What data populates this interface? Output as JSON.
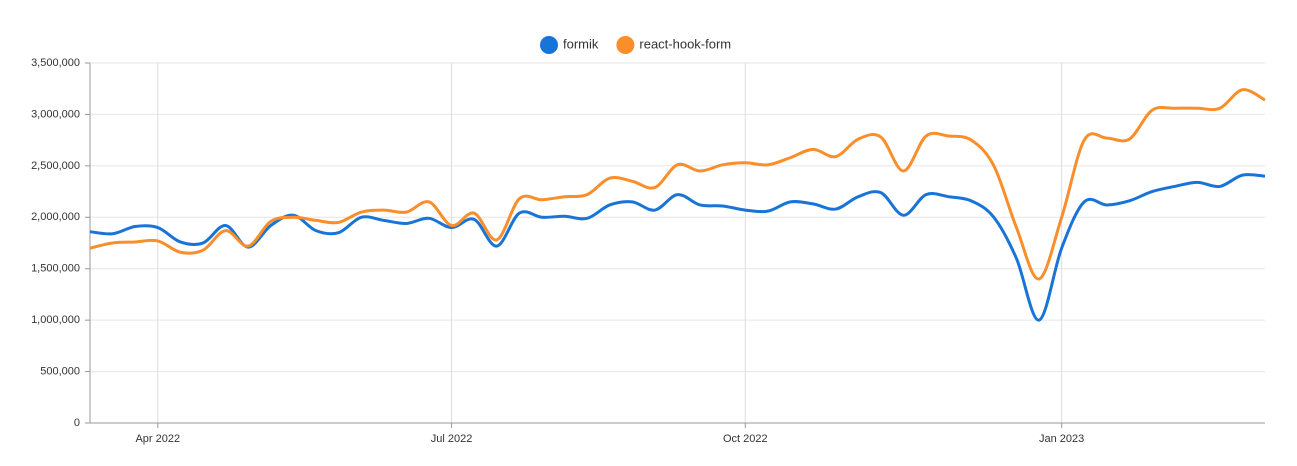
{
  "chart_data": {
    "type": "line",
    "categories": [
      null,
      null,
      null,
      "Apr 2022",
      null,
      null,
      null,
      null,
      null,
      null,
      null,
      null,
      null,
      null,
      null,
      null,
      "Jul 2022",
      null,
      null,
      null,
      null,
      null,
      null,
      null,
      null,
      null,
      null,
      null,
      null,
      "Oct 2022",
      null,
      null,
      null,
      null,
      null,
      null,
      null,
      null,
      null,
      null,
      null,
      null,
      null,
      "Jan 2023",
      null,
      null,
      null,
      null,
      null,
      null,
      null,
      null,
      null
    ],
    "series": [
      {
        "name": "formik",
        "color": "#1874d6",
        "values": [
          1860000,
          1840000,
          1910000,
          1900000,
          1760000,
          1750000,
          1920000,
          1710000,
          1920000,
          2020000,
          1870000,
          1850000,
          2000000,
          1970000,
          1940000,
          1990000,
          1900000,
          1980000,
          1720000,
          2040000,
          2000000,
          2010000,
          1990000,
          2120000,
          2150000,
          2070000,
          2220000,
          2120000,
          2110000,
          2070000,
          2060000,
          2150000,
          2130000,
          2080000,
          2200000,
          2240000,
          2020000,
          2220000,
          2200000,
          2160000,
          2000000,
          1600000,
          1000000,
          1700000,
          2150000,
          2120000,
          2160000,
          2250000,
          2300000,
          2340000,
          2300000,
          2410000,
          2400000
        ]
      },
      {
        "name": "react-hook-form",
        "color": "#f98e2a",
        "values": [
          1700000,
          1750000,
          1760000,
          1770000,
          1660000,
          1680000,
          1870000,
          1720000,
          1960000,
          2000000,
          1970000,
          1950000,
          2050000,
          2070000,
          2050000,
          2150000,
          1920000,
          2040000,
          1780000,
          2180000,
          2170000,
          2200000,
          2220000,
          2380000,
          2350000,
          2290000,
          2510000,
          2450000,
          2510000,
          2530000,
          2510000,
          2580000,
          2660000,
          2590000,
          2760000,
          2780000,
          2450000,
          2790000,
          2790000,
          2750000,
          2500000,
          1900000,
          1400000,
          2000000,
          2750000,
          2770000,
          2760000,
          3040000,
          3060000,
          3060000,
          3060000,
          3240000,
          3140000
        ]
      }
    ],
    "ylim": [
      0,
      3500000
    ],
    "yticks": [
      0,
      {
        "value": 500000,
        "label": "500,000"
      },
      {
        "value": 1000000,
        "label": "1,000,000"
      },
      {
        "value": 1500000,
        "label": "1,500,000"
      },
      {
        "value": 2000000,
        "label": "2,000,000"
      },
      {
        "value": 2500000,
        "label": "2,500,000"
      },
      {
        "value": 3000000,
        "label": "3,000,000"
      },
      {
        "value": 3500000,
        "label": "3,500,000"
      }
    ],
    "grid": true,
    "legend": "top"
  }
}
